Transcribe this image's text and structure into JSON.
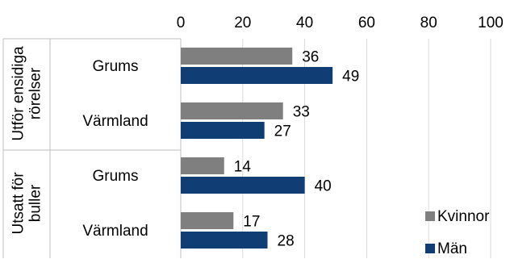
{
  "chart_data": {
    "type": "bar",
    "orientation": "horizontal",
    "xlim": [
      0,
      100
    ],
    "x_ticks": [
      "0",
      "20",
      "40",
      "60",
      "80",
      "100"
    ],
    "groups": [
      {
        "label": "Utför ensidiga rörelser",
        "label_lines": [
          "Utför ensidiga",
          "rörelser"
        ],
        "categories": [
          "Grums",
          "Värmland"
        ]
      },
      {
        "label": "Utsatt för buller",
        "label_lines": [
          "Utsatt för",
          "buller"
        ],
        "categories": [
          "Grums",
          "Värmland"
        ]
      }
    ],
    "series": [
      {
        "name": "Kvinnor",
        "color": "#7f7f7f",
        "values": [
          36,
          33,
          14,
          17
        ]
      },
      {
        "name": "Män",
        "color": "#0f3d74",
        "values": [
          49,
          27,
          40,
          28
        ]
      }
    ],
    "grid": true,
    "legend": "bottom-right"
  }
}
